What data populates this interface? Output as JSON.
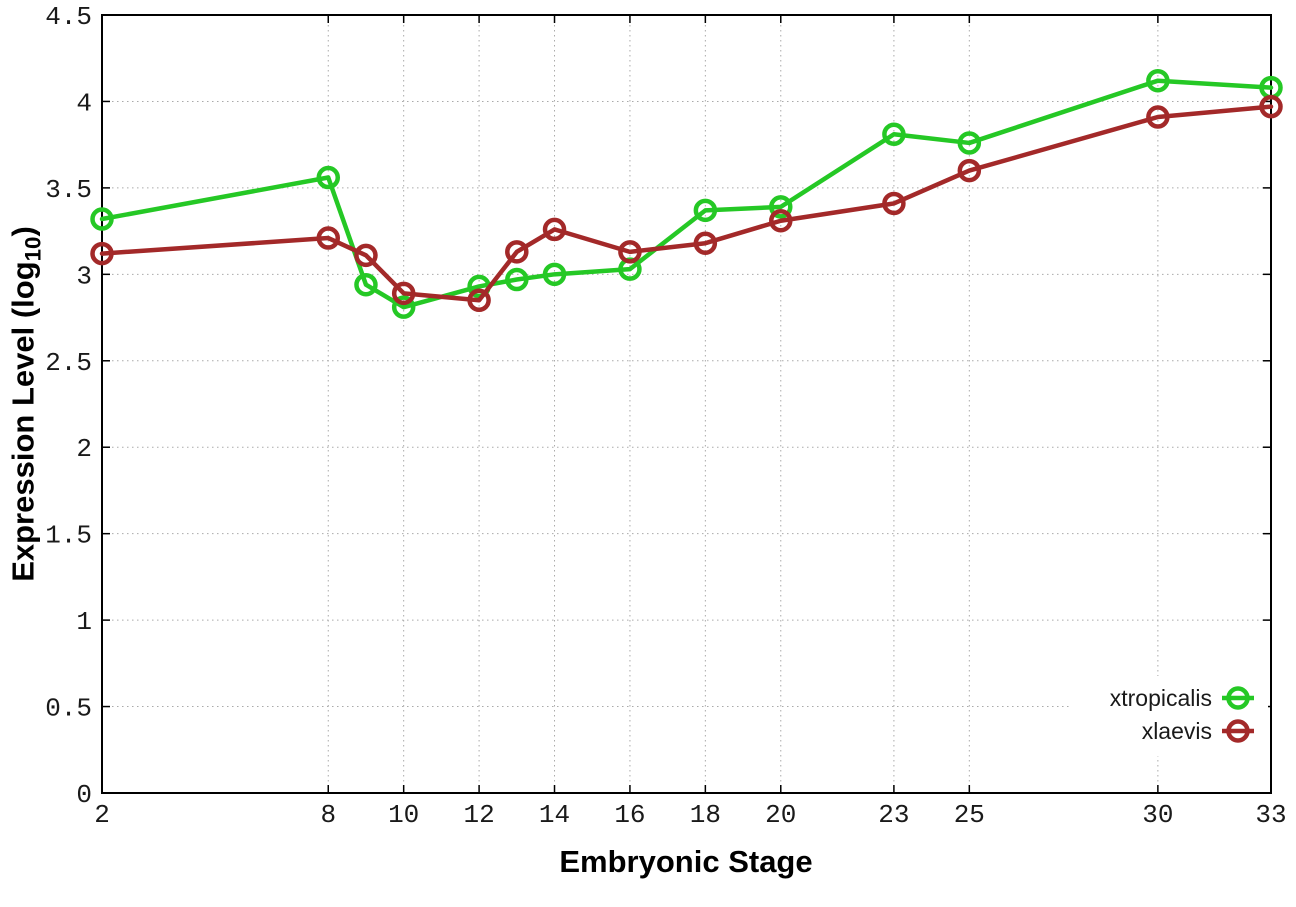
{
  "chart_data": {
    "type": "line",
    "title": "",
    "xlabel": "Embryonic Stage",
    "ylabel_prefix": "Expression Level (log",
    "ylabel_sub": "10",
    "ylabel_suffix": ")",
    "x": [
      2,
      8,
      9,
      10,
      12,
      13,
      14,
      16,
      18,
      20,
      23,
      25,
      30,
      33
    ],
    "xlim": [
      2,
      33
    ],
    "ylim": [
      0,
      4.5
    ],
    "xticks": {
      "values": [
        2,
        8,
        10,
        12,
        14,
        16,
        18,
        20,
        23,
        25,
        30,
        33
      ],
      "labels": [
        "2",
        "8",
        "10",
        "12",
        "14",
        "16",
        "18",
        "20",
        "23",
        "25",
        "30",
        "33"
      ]
    },
    "yticks": {
      "values": [
        0,
        0.5,
        1,
        1.5,
        2,
        2.5,
        3,
        3.5,
        4,
        4.5
      ],
      "labels": [
        "0",
        "0.5",
        "1",
        "1.5",
        "2",
        "2.5",
        "3",
        "3.5",
        "4",
        "4.5"
      ]
    },
    "grid": true,
    "legend_position": "bottom-right",
    "series": [
      {
        "name": "xtropicalis",
        "color": "#25c825",
        "values": [
          3.32,
          3.56,
          2.94,
          2.81,
          2.93,
          2.97,
          3.0,
          3.03,
          3.37,
          3.39,
          3.81,
          3.76,
          4.12,
          4.08
        ]
      },
      {
        "name": "xlaevis",
        "color": "#a32929",
        "values": [
          3.12,
          3.21,
          3.11,
          2.89,
          2.85,
          3.13,
          3.26,
          3.13,
          3.18,
          3.31,
          3.41,
          3.6,
          3.91,
          3.97
        ]
      }
    ],
    "style": {
      "grid_color": "#aaaaaa",
      "axis_color": "#000000",
      "tick_label_color": "#1a1a1a"
    }
  }
}
